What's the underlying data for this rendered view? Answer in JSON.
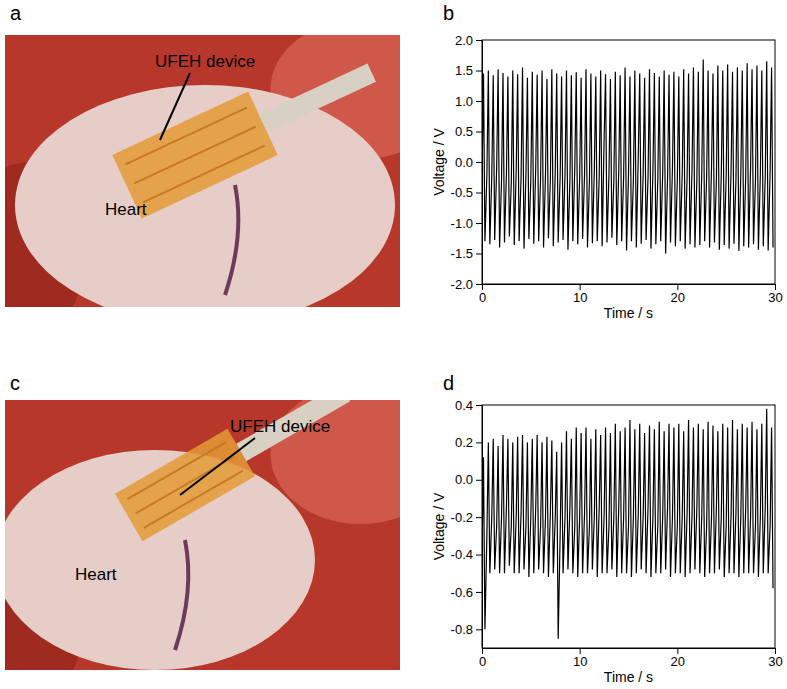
{
  "figure": {
    "photos": [
      {
        "panel": "a",
        "device_label": "UFEH device",
        "organ_label": "Heart"
      },
      {
        "panel": "c",
        "device_label": "UFEH device",
        "organ_label": "Heart"
      }
    ]
  },
  "chart_data": [
    {
      "type": "line",
      "title": "b",
      "x_label": "Time / s",
      "y_label": "Voltage / V",
      "color": "#000000",
      "grid": false,
      "xlim": [
        0,
        30
      ],
      "xticks": [
        0,
        10,
        20,
        30
      ],
      "ylim": [
        -2,
        2
      ],
      "yticks": [
        {
          "value": -2,
          "label": "-2.0"
        },
        -1.5,
        {
          "value": -1,
          "label": "-1.0"
        },
        -0.5,
        {
          "value": 0,
          "label": "0.0"
        },
        0.5,
        {
          "value": 1,
          "label": "1.0"
        },
        1.5,
        {
          "value": 2,
          "label": "2.0"
        }
      ],
      "x": [
        0,
        0.15,
        0.3,
        0.5,
        0.65,
        0.8,
        1,
        1.15,
        1.3,
        1.5,
        1.65,
        1.8,
        2,
        2.15,
        2.3,
        2.5,
        2.65,
        2.8,
        3,
        3.15,
        3.3,
        3.5,
        3.65,
        3.8,
        4,
        4.15,
        4.3,
        4.5,
        4.65,
        4.8,
        5,
        5.15,
        5.3,
        5.5,
        5.65,
        5.8,
        6,
        6.15,
        6.3,
        6.5,
        6.65,
        6.8,
        7,
        7.15,
        7.3,
        7.5,
        7.65,
        7.8,
        8,
        8.15,
        8.3,
        8.5,
        8.65,
        8.8,
        9,
        9.15,
        9.3,
        9.5,
        9.65,
        9.8,
        10,
        10.15,
        10.3,
        10.5,
        10.65,
        10.8,
        11,
        11.15,
        11.3,
        11.5,
        11.65,
        11.8,
        12,
        12.15,
        12.3,
        12.5,
        12.65,
        12.8,
        13,
        13.15,
        13.3,
        13.5,
        13.65,
        13.8,
        14,
        14.15,
        14.3,
        14.5,
        14.65,
        14.8,
        15,
        15.15,
        15.3,
        15.5,
        15.65,
        15.8,
        16,
        16.15,
        16.3,
        16.5,
        16.65,
        16.8,
        17,
        17.15,
        17.3,
        17.5,
        17.65,
        17.8,
        18,
        18.15,
        18.3,
        18.5,
        18.65,
        18.8,
        19,
        19.15,
        19.3,
        19.5,
        19.65,
        19.8,
        20,
        20.15,
        20.3,
        20.5,
        20.65,
        20.8,
        21,
        21.15,
        21.3,
        21.5,
        21.65,
        21.8,
        22,
        22.15,
        22.3,
        22.5,
        22.65,
        22.8,
        23,
        23.15,
        23.3,
        23.5,
        23.65,
        23.8,
        24,
        24.15,
        24.3,
        24.5,
        24.65,
        24.8,
        25,
        25.15,
        25.3,
        25.5,
        25.65,
        25.8,
        26,
        26.15,
        26.3,
        26.5,
        26.65,
        26.8,
        27,
        27.15,
        27.3,
        27.5,
        27.65,
        27.8,
        28,
        28.15,
        28.3,
        28.5,
        28.65,
        28.8,
        29,
        29.15,
        29.3,
        29.5,
        29.65,
        29.8
      ],
      "values": [
        -0.3,
        1.45,
        -1.3,
        -0.2,
        1.5,
        -1.35,
        -0.25,
        1.42,
        -1.28,
        -0.1,
        1.52,
        -1.4,
        -0.3,
        1.46,
        -1.32,
        -0.2,
        1.4,
        -1.22,
        -0.35,
        1.5,
        -1.36,
        -0.15,
        1.44,
        -1.3,
        -0.25,
        1.55,
        -1.42,
        -0.2,
        1.38,
        -1.26,
        -0.3,
        1.48,
        -1.34,
        -0.1,
        1.43,
        -1.3,
        -0.25,
        1.5,
        -1.4,
        -0.2,
        1.36,
        -1.25,
        -0.3,
        1.52,
        -1.38,
        -0.15,
        1.45,
        -1.32,
        -0.25,
        1.4,
        -1.28,
        -0.2,
        1.5,
        -1.44,
        -0.3,
        1.42,
        -1.3,
        -0.1,
        1.47,
        -1.35,
        -0.25,
        1.38,
        -1.26,
        -0.2,
        1.52,
        -1.4,
        -0.3,
        1.45,
        -1.33,
        -0.15,
        1.4,
        -1.3,
        -0.25,
        1.5,
        -1.38,
        0.35,
        1.44,
        -1.32,
        -0.2,
        1.36,
        -1.24,
        -0.3,
        1.48,
        -1.36,
        -0.15,
        1.42,
        -1.3,
        -0.25,
        1.55,
        -1.45,
        -0.2,
        1.4,
        -1.3,
        -0.3,
        1.5,
        -1.4,
        0.1,
        1.45,
        -1.34,
        -0.2,
        1.38,
        -1.28,
        -0.25,
        1.52,
        -1.42,
        -0.15,
        1.46,
        -1.35,
        -0.3,
        1.4,
        -1.3,
        -0.2,
        1.5,
        -1.5,
        -0.25,
        1.43,
        -1.32,
        -0.1,
        1.48,
        -1.38,
        -0.3,
        1.4,
        -1.3,
        -0.2,
        1.52,
        -1.42,
        -0.25,
        1.45,
        -1.35,
        -0.15,
        1.55,
        -1.4,
        -0.3,
        1.48,
        -1.36,
        -0.2,
        1.68,
        -1.3,
        -0.25,
        1.5,
        -1.4,
        -0.1,
        1.45,
        -1.32,
        -0.3,
        1.58,
        -1.44,
        -0.2,
        1.5,
        -1.36,
        -0.25,
        1.6,
        -1.42,
        -0.15,
        1.48,
        -1.34,
        -0.3,
        1.55,
        -1.46,
        -0.2,
        1.5,
        -1.38,
        -0.25,
        1.62,
        -1.4,
        -0.1,
        1.52,
        -1.35,
        -0.3,
        1.58,
        -1.44,
        -0.2,
        1.5,
        -1.38,
        -0.25,
        1.65,
        -1.45,
        -0.15,
        1.55,
        -1.4
      ]
    },
    {
      "type": "line",
      "title": "d",
      "x_label": "Time / s",
      "y_label": "Voltage / V",
      "color": "#000000",
      "grid": false,
      "xlim": [
        0,
        30
      ],
      "xticks": [
        0,
        10,
        20,
        30
      ],
      "ylim": [
        -0.9,
        0.4
      ],
      "yticks": [
        -0.8,
        -0.6,
        -0.4,
        -0.2,
        {
          "value": 0,
          "label": "0.0"
        },
        0.2,
        0.4
      ],
      "x": [
        0,
        0.15,
        0.3,
        0.5,
        0.65,
        0.8,
        1,
        1.15,
        1.3,
        1.5,
        1.65,
        1.8,
        2,
        2.15,
        2.3,
        2.5,
        2.65,
        2.8,
        3,
        3.15,
        3.3,
        3.5,
        3.65,
        3.8,
        4,
        4.15,
        4.3,
        4.5,
        4.65,
        4.8,
        5,
        5.15,
        5.3,
        5.5,
        5.65,
        5.8,
        6,
        6.15,
        6.3,
        6.5,
        6.65,
        6.8,
        7,
        7.15,
        7.3,
        7.5,
        7.65,
        7.8,
        8,
        8.15,
        8.3,
        8.5,
        8.65,
        8.8,
        9,
        9.15,
        9.3,
        9.5,
        9.65,
        9.8,
        10,
        10.15,
        10.3,
        10.5,
        10.65,
        10.8,
        11,
        11.15,
        11.3,
        11.5,
        11.65,
        11.8,
        12,
        12.15,
        12.3,
        12.5,
        12.65,
        12.8,
        13,
        13.15,
        13.3,
        13.5,
        13.65,
        13.8,
        14,
        14.15,
        14.3,
        14.5,
        14.65,
        14.8,
        15,
        15.15,
        15.3,
        15.5,
        15.65,
        15.8,
        16,
        16.15,
        16.3,
        16.5,
        16.65,
        16.8,
        17,
        17.15,
        17.3,
        17.5,
        17.65,
        17.8,
        18,
        18.15,
        18.3,
        18.5,
        18.65,
        18.8,
        19,
        19.15,
        19.3,
        19.5,
        19.65,
        19.8,
        20,
        20.15,
        20.3,
        20.5,
        20.65,
        20.8,
        21,
        21.15,
        21.3,
        21.5,
        21.65,
        21.8,
        22,
        22.15,
        22.3,
        22.5,
        22.65,
        22.8,
        23,
        23.15,
        23.3,
        23.5,
        23.65,
        23.8,
        24,
        24.15,
        24.3,
        24.5,
        24.65,
        24.8,
        25,
        25.15,
        25.3,
        25.5,
        25.65,
        25.8,
        26,
        26.15,
        26.3,
        26.5,
        26.65,
        26.8,
        27,
        27.15,
        27.3,
        27.5,
        27.65,
        27.8,
        28,
        28.15,
        28.3,
        28.5,
        28.65,
        28.8,
        29,
        29.15,
        29.3,
        29.5,
        29.65,
        29.8
      ],
      "values": [
        -0.4,
        0.12,
        -0.8,
        -0.3,
        0.2,
        -0.5,
        -0.2,
        0.22,
        -0.48,
        -0.25,
        0.18,
        -0.5,
        -0.2,
        0.24,
        -0.5,
        -0.15,
        0.22,
        -0.46,
        -0.25,
        0.2,
        -0.5,
        -0.2,
        0.23,
        -0.5,
        -0.18,
        0.24,
        -0.48,
        -0.25,
        0.2,
        -0.52,
        -0.2,
        0.22,
        -0.5,
        -0.15,
        0.24,
        -0.48,
        -0.25,
        0.2,
        -0.5,
        -0.2,
        0.23,
        -0.52,
        -0.18,
        0.21,
        -0.5,
        -0.2,
        0.15,
        -0.85,
        -0.3,
        0.2,
        -0.5,
        -0.2,
        0.26,
        -0.48,
        -0.15,
        0.22,
        -0.5,
        -0.25,
        0.28,
        -0.52,
        -0.2,
        0.25,
        -0.5,
        -0.18,
        0.28,
        -0.5,
        -0.25,
        0.22,
        -0.48,
        -0.2,
        0.27,
        -0.52,
        -0.15,
        0.24,
        -0.5,
        -0.2,
        0.28,
        -0.5,
        -0.25,
        0.25,
        -0.48,
        -0.2,
        0.3,
        -0.52,
        -0.15,
        0.26,
        -0.5,
        -0.2,
        0.28,
        -0.5,
        -0.25,
        0.32,
        -0.52,
        -0.2,
        0.27,
        -0.5,
        -0.18,
        0.3,
        -0.48,
        -0.2,
        0.25,
        -0.5,
        -0.15,
        0.29,
        -0.52,
        -0.2,
        0.27,
        -0.5,
        -0.25,
        0.31,
        -0.5,
        -0.2,
        0.26,
        -0.48,
        -0.15,
        0.3,
        -0.52,
        -0.2,
        0.28,
        -0.5,
        -0.25,
        0.3,
        -0.5,
        -0.2,
        0.26,
        -0.52,
        -0.18,
        0.32,
        -0.5,
        -0.2,
        0.28,
        -0.48,
        -0.15,
        0.3,
        -0.5,
        -0.2,
        0.27,
        -0.52,
        -0.25,
        0.31,
        -0.5,
        -0.2,
        0.29,
        -0.5,
        -0.15,
        0.26,
        -0.48,
        -0.2,
        0.3,
        -0.52,
        -0.25,
        0.28,
        -0.5,
        -0.2,
        0.32,
        -0.5,
        -0.18,
        0.27,
        -0.52,
        -0.2,
        0.3,
        -0.5,
        -0.15,
        0.28,
        -0.5,
        -0.2,
        0.31,
        -0.5,
        -0.25,
        0.27,
        -0.52,
        -0.2,
        0.3,
        -0.5,
        -0.15,
        0.38,
        -0.5,
        -0.25,
        0.28,
        -0.58
      ]
    }
  ]
}
